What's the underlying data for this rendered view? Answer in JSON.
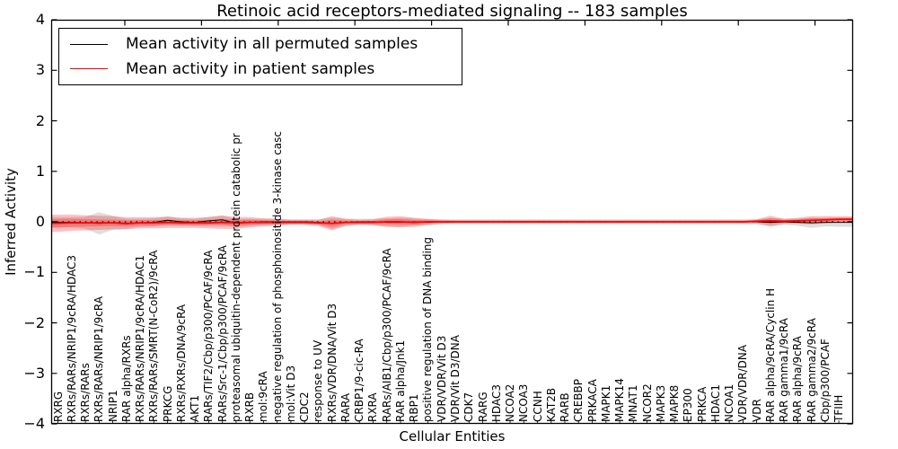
{
  "chart_data": {
    "type": "line",
    "title": "Retinoic acid receptors-mediated signaling -- 183 samples",
    "xlabel": "Cellular Entities",
    "ylabel": "Inferred Activity",
    "ylim": [
      -4,
      4
    ],
    "yticks": [
      4,
      3,
      2,
      1,
      0,
      -1,
      -2,
      -3,
      -4
    ],
    "grid": false,
    "legend_position": "upper left",
    "zero_reference_line": true,
    "categories": [
      "RXRG",
      "RXRs/RARs/NRIP1/9cRA/HDAC3",
      "RXRs/RARs",
      "RXRs/RARs/NRIP1/9cRA",
      "NRIP1",
      "RAR alpha/RXRs",
      "RXRs/RARs/NRIP1/9cRA/HDAC1",
      "RXRs/RARs/SMRT(N-CoR2)/9cRA",
      "PRKCG",
      "RXRs/RXRs/DNA/9cRA",
      "AKT1",
      "RARs/TIF2/Cbp/p300/PCAF/9cRA",
      "RARs/Src-1/Cbp/p300/PCAF/9cRA",
      "proteasomal ubiquitin-dependent protein catabolic pr",
      "RXRB",
      "mol:9cRA",
      "negative regulation of phosphoinositide 3-kinase casc",
      "mol:Vit D3",
      "CDC2",
      "response to UV",
      "RXRs/VDR/DNA/Vit D3",
      "RARA",
      "CRBP1/9-cic-RA",
      "RXRA",
      "RARs/AIB1/Cbp/p300/PCAF/9cRA",
      "RAR alpha/Jnk1",
      "RBP1",
      "positive regulation of DNA binding",
      "VDR/VDR/Vit D3",
      "VDR/Vit D3/DNA",
      "CDK7",
      "RARG",
      "HDAC3",
      "NCOA2",
      "NCOA3",
      "CCNH",
      "KAT2B",
      "RARB",
      "CREBBP",
      "PRKACA",
      "MAPK1",
      "MAPK14",
      "MNAT1",
      "NCOR2",
      "MAPK3",
      "MAPK8",
      "EP300",
      "PRKCA",
      "HDAC1",
      "NCOA1",
      "VDR/VDR/DNA",
      "VDR",
      "RAR alpha/9cRA/Cyclin H",
      "RAR gamma1/9cRA",
      "RAR alpha/9cRA",
      "RAR gamma2/9cRA",
      "Cbp/p300/PCAF",
      "TFIIH"
    ],
    "series": [
      {
        "name": "Mean activity in all permuted samples",
        "color": "#000000",
        "band_color": "#888888",
        "values": [
          -0.01,
          -0.01,
          -0.02,
          -0.03,
          -0.02,
          -0.04,
          -0.02,
          -0.01,
          0.03,
          0,
          -0.01,
          0.02,
          0.04,
          -0.03,
          -0.01,
          0,
          0,
          0,
          0,
          -0.01,
          -0.03,
          -0.01,
          0,
          0,
          -0.01,
          -0.01,
          0,
          -0.01,
          0,
          0,
          0,
          0,
          0,
          0,
          0,
          0,
          0,
          0,
          0,
          0,
          0,
          0,
          0,
          0,
          0,
          0,
          0,
          0,
          0,
          0,
          0,
          0,
          -0.01,
          0,
          -0.01,
          -0.02,
          -0.01,
          -0.01
        ],
        "band_halfwidth": [
          0.1,
          0.1,
          0.12,
          0.22,
          0.14,
          0.1,
          0.08,
          0.08,
          0.08,
          0.07,
          0.07,
          0.08,
          0.09,
          0.08,
          0.07,
          0.06,
          0.06,
          0.05,
          0.05,
          0.06,
          0.11,
          0.07,
          0.06,
          0.06,
          0.08,
          0.09,
          0.07,
          0.06,
          0.05,
          0.05,
          0.05,
          0.05,
          0.05,
          0.05,
          0.05,
          0.05,
          0.05,
          0.05,
          0.05,
          0.05,
          0.05,
          0.05,
          0.05,
          0.05,
          0.05,
          0.05,
          0.05,
          0.05,
          0.05,
          0.05,
          0.05,
          0.05,
          0.09,
          0.06,
          0.07,
          0.1,
          0.08,
          0.09
        ]
      },
      {
        "name": "Mean activity in patient samples",
        "color": "#ff0000",
        "band_color": "#ff0000",
        "values": [
          -0.03,
          -0.02,
          -0.02,
          -0.02,
          -0.02,
          -0.03,
          -0.02,
          -0.02,
          -0.01,
          -0.02,
          -0.02,
          -0.02,
          -0.01,
          -0.02,
          -0.01,
          -0.01,
          -0.01,
          -0.01,
          -0.01,
          -0.02,
          -0.03,
          -0.01,
          -0.01,
          -0.01,
          0,
          0,
          -0.01,
          0,
          0,
          0,
          0,
          0,
          0,
          0,
          0,
          0,
          0,
          0,
          0,
          0,
          0,
          0,
          0,
          0,
          0,
          0,
          0,
          0,
          0,
          0,
          0,
          0.01,
          0.02,
          0.01,
          0.02,
          0.03,
          0.04,
          0.05
        ],
        "band_halfwidth": [
          0.17,
          0.16,
          0.15,
          0.14,
          0.13,
          0.12,
          0.11,
          0.11,
          0.11,
          0.1,
          0.1,
          0.11,
          0.13,
          0.12,
          0.1,
          0.08,
          0.07,
          0.05,
          0.05,
          0.06,
          0.14,
          0.07,
          0.05,
          0.06,
          0.1,
          0.11,
          0.09,
          0.06,
          0.04,
          0.03,
          0.03,
          0.03,
          0.03,
          0.03,
          0.03,
          0.03,
          0.03,
          0.03,
          0.03,
          0.03,
          0.03,
          0.03,
          0.03,
          0.03,
          0.03,
          0.03,
          0.03,
          0.03,
          0.03,
          0.03,
          0.03,
          0.04,
          0.1,
          0.05,
          0.06,
          0.08,
          0.07,
          0.06
        ]
      }
    ]
  }
}
